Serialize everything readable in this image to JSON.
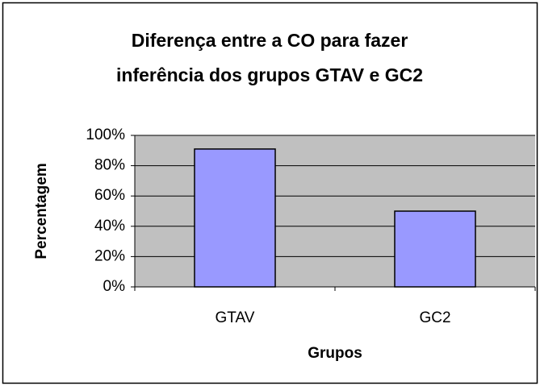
{
  "chart_data": {
    "type": "bar",
    "title": [
      "Diferença entre a CO para fazer",
      "inferência dos grupos GTAV e GC2"
    ],
    "x_label": "Grupos",
    "y_label": "Percentagem",
    "categories": [
      "GTAV",
      "GC2"
    ],
    "values": [
      91,
      50
    ],
    "color": "#9999ff",
    "ylim": [
      0,
      100
    ],
    "yticks": [
      {
        "value": 0,
        "label": "0%"
      },
      {
        "value": 20,
        "label": "20%"
      },
      {
        "value": 40,
        "label": "40%"
      },
      {
        "value": 60,
        "label": "60%"
      },
      {
        "value": 80,
        "label": "80%"
      },
      {
        "value": 100,
        "label": "100%"
      }
    ],
    "grid": true
  }
}
